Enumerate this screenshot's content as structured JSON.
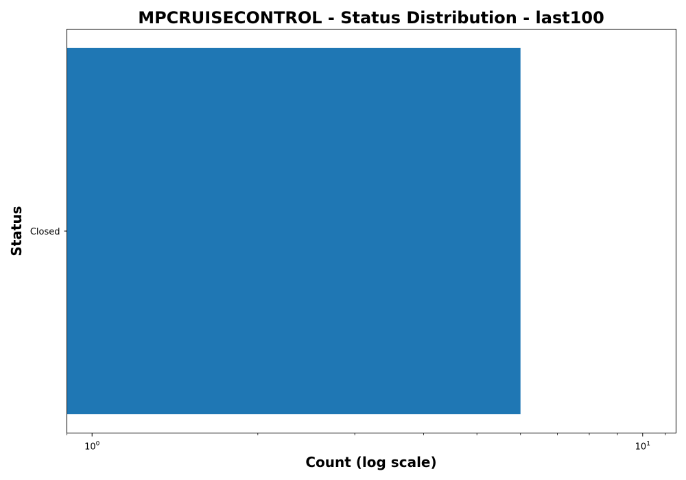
{
  "chart_data": {
    "type": "bar",
    "orientation": "horizontal",
    "title": "MPCRUISECONTROL - Status Distribution - last100",
    "xlabel": "Count (log scale)",
    "ylabel": "Status",
    "x_scale": "log",
    "xlim": [
      0.9,
      11.5
    ],
    "categories": [
      "Closed"
    ],
    "values": [
      6
    ],
    "x_tick_labels": [
      {
        "base": "10",
        "exp": "0",
        "value": 1
      },
      {
        "base": "10",
        "exp": "1",
        "value": 10
      }
    ],
    "minor_ticks": [
      2,
      3,
      4,
      5,
      6,
      7,
      8,
      9,
      0.9,
      11
    ],
    "bar_color": "#1f77b4",
    "grid": false,
    "legend": "none"
  }
}
